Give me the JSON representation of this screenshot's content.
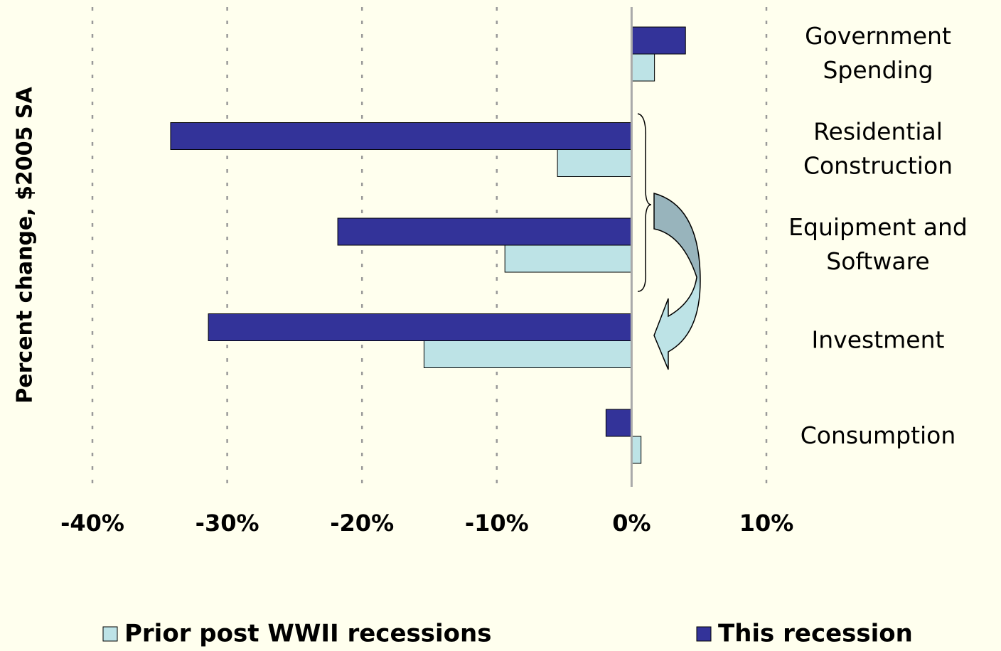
{
  "chart_data": {
    "type": "hbar",
    "ylabel": "Percent change, $2005 SA",
    "categories": [
      "Government\nSpending",
      "Residential\nConstruction",
      "Equipment and\nSoftware",
      "Investment",
      "Consumption"
    ],
    "series": [
      {
        "name": "Prior post WWII recessions",
        "color": "#bde3e6",
        "values": [
          1.7,
          -5.5,
          -9.4,
          -15.4,
          0.7
        ]
      },
      {
        "name": "This recession",
        "color": "#333399",
        "values": [
          4.0,
          -34.2,
          -21.8,
          -31.4,
          -1.9
        ]
      }
    ],
    "xlim": [
      -40,
      10
    ],
    "xticks": [
      {
        "value": -40,
        "label": "-40%"
      },
      {
        "value": -30,
        "label": "-30%"
      },
      {
        "value": -20,
        "label": "-20%"
      },
      {
        "value": -10,
        "label": "-10%"
      },
      {
        "value": 0,
        "label": "0%"
      },
      {
        "value": 10,
        "label": "10%"
      }
    ],
    "grid": true,
    "legend": "bottom"
  }
}
